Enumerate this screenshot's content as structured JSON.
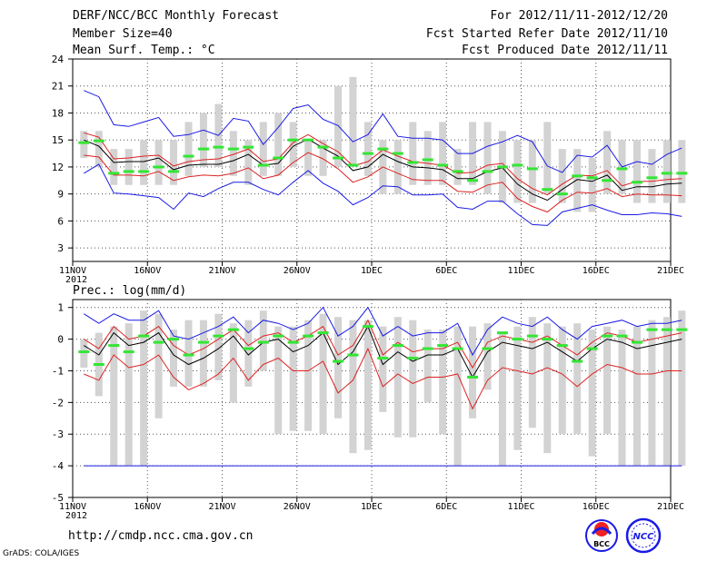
{
  "header": {
    "title": "DERF/NCC/BCC Monthly Forecast",
    "member_size": "Member Size=40",
    "variable": "Mean Surf. Temp.: °C",
    "period": "For 2012/11/11-2012/12/20",
    "start_date": "Fcst Started Refer Date 2012/11/10",
    "produced_date": "Fcst Produced Date 2012/11/11"
  },
  "footer": {
    "url": "http://cmdp.ncc.cma.gov.cn",
    "credit": "GrADS: COLA/IGES",
    "logo_left": "BCC",
    "logo_right": "NCC"
  },
  "colors": {
    "box": "#d3d3d3",
    "green": "#33e633",
    "red": "#dd2222",
    "blue": "#1a1ae6",
    "black": "#000000",
    "grid": "#555555"
  },
  "chart_data": [
    {
      "type": "line",
      "title": "Mean Surf. Temp.: °C",
      "x_tick_labels": [
        "11NOV",
        "16NOV",
        "21NOV",
        "26NOV",
        "1DEC",
        "6DEC",
        "11DEC",
        "16DEC",
        "21DEC"
      ],
      "x_year_label": "2012",
      "x_range": [
        0,
        40
      ],
      "ylim": [
        1.5,
        24
      ],
      "y_ticks": [
        3,
        6,
        9,
        12,
        15,
        18,
        21,
        24
      ],
      "series": [
        {
          "name": "box_top",
          "values": [
            16,
            16,
            14,
            14,
            15,
            15,
            15,
            17,
            18,
            19,
            16,
            15,
            17,
            18,
            17,
            15,
            15,
            21,
            22,
            17,
            15,
            15,
            17,
            16,
            17,
            14,
            17,
            17,
            16,
            15,
            15,
            17,
            14,
            14,
            13,
            16,
            15,
            15,
            14,
            15,
            15
          ]
        },
        {
          "name": "box_bottom",
          "values": [
            13,
            12,
            10,
            10,
            10,
            10,
            10,
            11,
            12,
            12,
            11,
            10,
            11,
            11,
            12,
            11,
            11,
            12,
            12,
            11,
            9,
            9,
            10,
            10,
            10,
            10,
            10,
            9,
            8,
            8,
            8,
            9,
            8,
            7,
            7,
            9,
            9,
            8,
            8,
            8,
            8
          ]
        },
        {
          "name": "green_mean",
          "values": [
            14.7,
            14.9,
            11.3,
            11.5,
            11.5,
            12.0,
            11.5,
            13.2,
            14.0,
            14.2,
            14.0,
            14.2,
            12.2,
            13.0,
            15.0,
            15.0,
            14.2,
            13.0,
            12.2,
            13.5,
            14.0,
            13.5,
            12.5,
            12.8,
            12.2,
            11.5,
            10.5,
            11.5,
            12.0,
            12.2,
            11.8,
            9.5,
            9.0,
            11.0,
            10.8,
            10.5,
            11.8,
            10.3,
            10.8,
            11.3,
            11.3
          ]
        },
        {
          "name": "black_center",
          "values": [
            15.0,
            14.3,
            12.5,
            12.6,
            12.6,
            13.0,
            11.7,
            12.2,
            12.3,
            12.3,
            12.7,
            13.4,
            12.2,
            12.4,
            14.3,
            15.1,
            14.1,
            13.2,
            11.6,
            12.0,
            13.4,
            12.6,
            12.0,
            11.9,
            11.7,
            10.7,
            10.7,
            11.5,
            11.9,
            10.1,
            9.0,
            8.3,
            9.5,
            10.6,
            10.4,
            11.1,
            9.4,
            9.8,
            9.8,
            10.1,
            10.2
          ]
        },
        {
          "name": "red_upper",
          "values": [
            15.8,
            15.3,
            12.9,
            13.0,
            13.2,
            13.3,
            12.1,
            12.6,
            12.8,
            12.9,
            13.4,
            14.0,
            12.6,
            12.9,
            14.7,
            15.6,
            14.6,
            13.7,
            12.1,
            12.6,
            13.9,
            13.2,
            12.6,
            12.4,
            12.2,
            11.3,
            11.4,
            12.2,
            12.4,
            10.7,
            9.6,
            8.9,
            10.1,
            11.1,
            11.0,
            11.6,
            9.9,
            10.4,
            10.4,
            10.6,
            10.7
          ]
        },
        {
          "name": "red_lower",
          "values": [
            13.3,
            13.1,
            11.1,
            11.1,
            11.0,
            11.5,
            10.5,
            10.9,
            11.1,
            11.0,
            11.3,
            11.9,
            10.7,
            11.1,
            12.5,
            13.6,
            12.9,
            11.8,
            10.3,
            10.9,
            12.0,
            11.3,
            10.6,
            10.5,
            10.5,
            9.3,
            9.2,
            10.0,
            10.3,
            8.5,
            7.6,
            7.0,
            8.3,
            9.2,
            9.1,
            9.6,
            8.7,
            9.0,
            8.9,
            8.9,
            8.8
          ]
        },
        {
          "name": "blue_upper",
          "values": [
            20.5,
            19.8,
            16.7,
            16.5,
            17.0,
            17.5,
            15.4,
            15.6,
            16.1,
            15.5,
            17.4,
            17.1,
            14.5,
            16.4,
            18.5,
            18.9,
            17.3,
            16.6,
            14.8,
            15.6,
            17.9,
            15.4,
            15.2,
            15.2,
            15.0,
            13.5,
            13.5,
            14.3,
            14.8,
            15.5,
            14.8,
            12.1,
            11.4,
            13.3,
            13.1,
            14.4,
            12.0,
            12.6,
            12.3,
            13.4,
            14.1
          ]
        },
        {
          "name": "blue_lower",
          "values": [
            11.3,
            12.3,
            9.1,
            9.0,
            8.8,
            8.6,
            7.3,
            9.1,
            8.7,
            9.6,
            10.3,
            10.3,
            9.5,
            8.9,
            10.3,
            11.6,
            10.2,
            9.3,
            7.8,
            8.6,
            9.9,
            9.8,
            8.9,
            8.9,
            9.0,
            7.5,
            7.3,
            8.2,
            8.2,
            6.8,
            5.6,
            5.5,
            7.0,
            7.4,
            7.8,
            7.2,
            6.7,
            6.7,
            6.9,
            6.8,
            6.5
          ]
        }
      ]
    },
    {
      "type": "line",
      "title": "Prec.: log(mm/d)",
      "x_tick_labels": [
        "11NOV",
        "16NOV",
        "21NOV",
        "26NOV",
        "1DEC",
        "6DEC",
        "11DEC",
        "16DEC",
        "21DEC"
      ],
      "x_year_label": "2012",
      "x_range": [
        0,
        40
      ],
      "ylim": [
        -5,
        1.25
      ],
      "y_ticks": [
        -5,
        -4,
        -3,
        -2,
        -1,
        0,
        1
      ],
      "series": [
        {
          "name": "box_top",
          "values": [
            0,
            0.2,
            0.4,
            0.5,
            0.9,
            0.8,
            0.3,
            0.6,
            0.6,
            0.8,
            0.5,
            0.6,
            0.9,
            0.4,
            0.4,
            0.6,
            0.8,
            0.7,
            0.6,
            0.6,
            0.4,
            0.7,
            0.6,
            0.3,
            0.3,
            0.4,
            0.4,
            0.5,
            0.2,
            0.4,
            0.7,
            0.5,
            0.4,
            0.5,
            0.3,
            0.4,
            0.3,
            0.4,
            0.6,
            0.7,
            0.9
          ]
        },
        {
          "name": "box_bottom",
          "values": [
            -0.9,
            -1.8,
            -4,
            -4,
            -4,
            -2.5,
            -1.5,
            -1.5,
            -1.5,
            -1.3,
            -2,
            -1.5,
            -1.0,
            -3,
            -2.9,
            -2.9,
            -3,
            -2.5,
            -3.6,
            -3.5,
            -2.3,
            -3.1,
            -3.1,
            -2,
            -3,
            -4,
            -2.5,
            -1.6,
            -4,
            -3.5,
            -2.8,
            -3.6,
            -3,
            -3,
            -3.7,
            -3,
            -4,
            -4,
            -4,
            -4,
            -4
          ]
        },
        {
          "name": "green_mean",
          "values": [
            -0.4,
            -0.8,
            -0.2,
            -0.4,
            0.1,
            -0.1,
            -0.0,
            -0.5,
            -0.1,
            0.1,
            0.3,
            -0.3,
            -0.1,
            0.1,
            -0.1,
            0.1,
            0.2,
            -0.7,
            -0.5,
            0.4,
            -0.6,
            -0.2,
            -0.6,
            -0.3,
            -0.2,
            -0.3,
            -1.2,
            -0.3,
            0.2,
            0.0,
            0.1,
            0.0,
            -0.2,
            -0.7,
            -0.3,
            0.1,
            0.1,
            -0.1,
            0.3,
            0.3,
            0.3
          ]
        },
        {
          "name": "black_center",
          "values": [
            -0.2,
            -0.5,
            0.2,
            -0.2,
            -0.1,
            0.2,
            -0.5,
            -0.8,
            -0.6,
            -0.3,
            0.1,
            -0.5,
            -0.1,
            0.0,
            -0.4,
            -0.2,
            0.2,
            -0.8,
            -0.4,
            0.4,
            -0.8,
            -0.4,
            -0.7,
            -0.5,
            -0.5,
            -0.3,
            -1.2,
            -0.4,
            -0.1,
            -0.2,
            -0.3,
            -0.1,
            -0.4,
            -0.7,
            -0.3,
            0.0,
            -0.1,
            -0.3,
            -0.2,
            -0.1,
            0.0
          ]
        },
        {
          "name": "red_upper",
          "values": [
            0.0,
            -0.3,
            0.4,
            0.0,
            0.1,
            0.4,
            -0.2,
            -0.5,
            -0.3,
            0.0,
            0.3,
            -0.2,
            0.1,
            0.2,
            -0.1,
            0.1,
            0.4,
            -0.5,
            -0.2,
            0.6,
            -0.5,
            -0.1,
            -0.4,
            -0.3,
            -0.3,
            -0.1,
            -0.9,
            -0.1,
            0.1,
            0.0,
            -0.1,
            0.1,
            -0.2,
            -0.5,
            -0.1,
            0.2,
            0.1,
            -0.1,
            0.0,
            0.1,
            0.2
          ]
        },
        {
          "name": "red_lower",
          "values": [
            -1.1,
            -1.3,
            -0.5,
            -0.9,
            -0.8,
            -0.5,
            -1.2,
            -1.6,
            -1.4,
            -1.1,
            -0.6,
            -1.3,
            -0.8,
            -0.6,
            -1.0,
            -1.0,
            -0.7,
            -1.7,
            -1.3,
            -0.3,
            -1.5,
            -1.1,
            -1.4,
            -1.2,
            -1.2,
            -1.1,
            -2.2,
            -1.3,
            -0.9,
            -1.0,
            -1.1,
            -0.9,
            -1.1,
            -1.5,
            -1.1,
            -0.8,
            -0.9,
            -1.1,
            -1.1,
            -1.0,
            -1.0
          ]
        },
        {
          "name": "blue_upper",
          "values": [
            0.8,
            0.5,
            0.8,
            0.6,
            0.6,
            0.9,
            0.1,
            0.0,
            0.2,
            0.4,
            0.7,
            0.2,
            0.6,
            0.5,
            0.3,
            0.5,
            1.0,
            0.1,
            0.4,
            1.0,
            0.1,
            0.4,
            0.1,
            0.2,
            0.2,
            0.5,
            -0.5,
            0.3,
            0.7,
            0.5,
            0.4,
            0.7,
            0.3,
            0.0,
            0.4,
            0.5,
            0.6,
            0.4,
            0.5,
            0.5,
            0.6
          ]
        },
        {
          "name": "blue_lower",
          "values": [
            -4,
            -4,
            -4,
            -4,
            -4,
            -4,
            -4,
            -4,
            -4,
            -4,
            -4,
            -4,
            -4,
            -4,
            -4,
            -4,
            -4,
            -4,
            -4,
            -4,
            -4,
            -4,
            -4,
            -4,
            -4,
            -4,
            -4,
            -4,
            -4,
            -4,
            -4,
            -4,
            -4,
            -4,
            -4,
            -4,
            -4,
            -4,
            -4,
            -4,
            -4
          ]
        }
      ]
    }
  ]
}
